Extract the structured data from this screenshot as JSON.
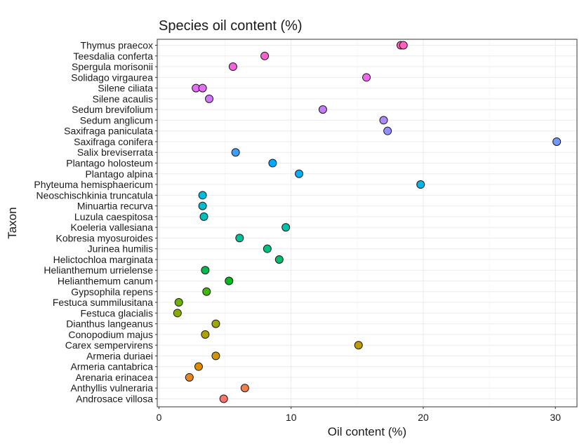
{
  "chart_data": {
    "type": "scatter",
    "title": "Species oil content (%)",
    "xlabel": "Oil content (%)",
    "ylabel": "Taxon",
    "xlim": [
      0,
      31.5
    ],
    "x_ticks": [
      0,
      10,
      20,
      30
    ],
    "grid": true,
    "legend": "none",
    "categories": [
      "Androsace villosa",
      "Anthyllis vulneraria",
      "Arenaria erinacea",
      "Armeria cantabrica",
      "Armeria duriaei",
      "Carex sempervirens",
      "Conopodium majus",
      "Dianthus langeanus",
      "Festuca glacialis",
      "Festuca summilusitana",
      "Gypsophila repens",
      "Helianthemum canum",
      "Helianthemum urrielense",
      "Helictochloa marginata",
      "Jurinea humilis",
      "Kobresia myosuroides",
      "Koeleria vallesiana",
      "Luzula caespitosa",
      "Minuartia recurva",
      "Neoschischkinia truncatula",
      "Phyteuma hemisphaericum",
      "Plantago alpina",
      "Plantago holosteum",
      "Salix breviserrata",
      "Saxifraga conifera",
      "Saxifraga paniculata",
      "Sedum anglicum",
      "Sedum brevifolium",
      "Silene acaulis",
      "Silene ciliata",
      "Solidago virgaurea",
      "Spergula morisonii",
      "Teesdalia conferta",
      "Thymus praecox"
    ],
    "colors": [
      "#F8766D",
      "#F17E4D",
      "#E8861B",
      "#DE8C00",
      "#D09400",
      "#C29B00",
      "#B0A000",
      "#9DA700",
      "#87AD00",
      "#6BB100",
      "#43B600",
      "#00B81F",
      "#00BB4E",
      "#00BD6D",
      "#00BF83",
      "#00C097",
      "#00C0AA",
      "#00BFBC",
      "#00BDCC",
      "#00BADB",
      "#00B6E9",
      "#00AFF5",
      "#00A8FF",
      "#3C9FFF",
      "#7497FF",
      "#9590FF",
      "#AE88FF",
      "#C37EFF",
      "#D575FE",
      "#E46EF5",
      "#EE68EA",
      "#F664DD",
      "#FB62CE",
      "#FF62BC"
    ],
    "points": [
      {
        "taxon": "Androsace villosa",
        "x": 4.9
      },
      {
        "taxon": "Anthyllis vulneraria",
        "x": 6.5
      },
      {
        "taxon": "Arenaria erinacea",
        "x": 2.3
      },
      {
        "taxon": "Armeria cantabrica",
        "x": 3.0
      },
      {
        "taxon": "Armeria duriaei",
        "x": 4.3
      },
      {
        "taxon": "Carex sempervirens",
        "x": 15.1
      },
      {
        "taxon": "Conopodium majus",
        "x": 3.5
      },
      {
        "taxon": "Dianthus langeanus",
        "x": 4.3
      },
      {
        "taxon": "Festuca glacialis",
        "x": 1.4
      },
      {
        "taxon": "Festuca summilusitana",
        "x": 1.5
      },
      {
        "taxon": "Gypsophila repens",
        "x": 3.6
      },
      {
        "taxon": "Helianthemum canum",
        "x": 5.3
      },
      {
        "taxon": "Helianthemum urrielense",
        "x": 3.5
      },
      {
        "taxon": "Helictochloa marginata",
        "x": 9.1
      },
      {
        "taxon": "Jurinea humilis",
        "x": 8.2
      },
      {
        "taxon": "Kobresia myosuroides",
        "x": 6.1
      },
      {
        "taxon": "Koeleria vallesiana",
        "x": 9.6
      },
      {
        "taxon": "Luzula caespitosa",
        "x": 3.4
      },
      {
        "taxon": "Minuartia recurva",
        "x": 3.3
      },
      {
        "taxon": "Neoschischkinia truncatula",
        "x": 3.3
      },
      {
        "taxon": "Phyteuma hemisphaericum",
        "x": 19.8
      },
      {
        "taxon": "Plantago alpina",
        "x": 10.6
      },
      {
        "taxon": "Plantago holosteum",
        "x": 8.6
      },
      {
        "taxon": "Salix breviserrata",
        "x": 5.8
      },
      {
        "taxon": "Saxifraga conifera",
        "x": 30.1
      },
      {
        "taxon": "Saxifraga paniculata",
        "x": 17.3
      },
      {
        "taxon": "Sedum anglicum",
        "x": 17.0
      },
      {
        "taxon": "Sedum brevifolium",
        "x": 12.4
      },
      {
        "taxon": "Silene acaulis",
        "x": 3.8
      },
      {
        "taxon": "Silene ciliata",
        "x": 2.8
      },
      {
        "taxon": "Silene ciliata",
        "x": 3.3
      },
      {
        "taxon": "Solidago virgaurea",
        "x": 15.7
      },
      {
        "taxon": "Spergula morisonii",
        "x": 5.6
      },
      {
        "taxon": "Teesdalia conferta",
        "x": 8.0
      },
      {
        "taxon": "Thymus praecox",
        "x": 18.3
      },
      {
        "taxon": "Thymus praecox",
        "x": 18.5
      }
    ]
  }
}
